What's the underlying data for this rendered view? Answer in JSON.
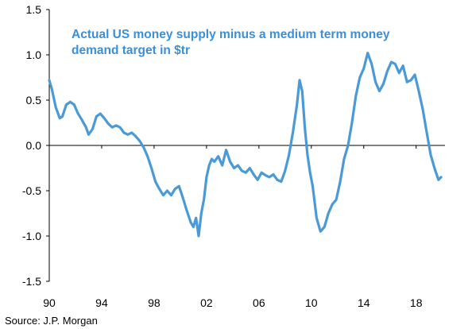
{
  "chart_data": {
    "type": "line",
    "title_lines": [
      "Actual US money supply minus a medium term money",
      "demand target in $tr"
    ],
    "source": "Source: J.P. Morgan",
    "xlabel": "",
    "ylabel": "",
    "xlim": [
      1990,
      2020.2
    ],
    "ylim": [
      -1.5,
      1.5
    ],
    "x_tick_labels": [
      {
        "value": 1990,
        "label": "90"
      },
      {
        "value": 1994,
        "label": "94"
      },
      {
        "value": 1998,
        "label": "98"
      },
      {
        "value": 2002,
        "label": "02"
      },
      {
        "value": 2006,
        "label": "06"
      },
      {
        "value": 2010,
        "label": "10"
      },
      {
        "value": 2014,
        "label": "14"
      },
      {
        "value": 2018,
        "label": "18"
      }
    ],
    "y_tick_labels": [
      {
        "value": 1.5,
        "label": "1.5"
      },
      {
        "value": 1.0,
        "label": "1.0"
      },
      {
        "value": 0.5,
        "label": "0.5"
      },
      {
        "value": 0.0,
        "label": "0.0"
      },
      {
        "value": -0.5,
        "label": "-0.5"
      },
      {
        "value": -1.0,
        "label": "-1.0"
      },
      {
        "value": -1.5,
        "label": "-1.5"
      }
    ],
    "grid": false,
    "legend": "none",
    "colors": {
      "line": "#4a9ad8",
      "title": "#3b8fd6",
      "axis": "#000000"
    },
    "series": [
      {
        "x": [
          1990.0,
          1990.2,
          1990.5,
          1990.8,
          1991.0,
          1991.3,
          1991.6,
          1991.9,
          1992.2,
          1992.5,
          1992.8,
          1993.0,
          1993.3,
          1993.6,
          1993.9,
          1994.2,
          1994.5,
          1994.8,
          1995.1,
          1995.4,
          1995.7,
          1996.0,
          1996.3,
          1996.6,
          1996.9,
          1997.2,
          1997.5,
          1997.8,
          1998.1,
          1998.4,
          1998.7,
          1999.0,
          1999.3,
          1999.6,
          1999.9,
          2000.2,
          2000.5,
          2000.8,
          2001.0,
          2001.2,
          2001.4,
          2001.6,
          2001.8,
          2002.0,
          2002.2,
          2002.4,
          2002.6,
          2002.9,
          2003.2,
          2003.5,
          2003.8,
          2004.1,
          2004.4,
          2004.7,
          2005.0,
          2005.3,
          2005.6,
          2005.9,
          2006.2,
          2006.5,
          2006.8,
          2007.1,
          2007.4,
          2007.7,
          2008.0,
          2008.3,
          2008.6,
          2008.9,
          2009.1,
          2009.3,
          2009.5,
          2009.7,
          2009.9,
          2010.1,
          2010.4,
          2010.7,
          2011.0,
          2011.3,
          2011.6,
          2011.9,
          2012.2,
          2012.5,
          2012.8,
          2013.1,
          2013.4,
          2013.7,
          2014.0,
          2014.3,
          2014.6,
          2014.9,
          2015.2,
          2015.5,
          2015.8,
          2016.1,
          2016.4,
          2016.7,
          2017.0,
          2017.3,
          2017.6,
          2017.9,
          2018.2,
          2018.5,
          2018.8,
          2019.1,
          2019.4,
          2019.7,
          2019.9
        ],
        "y": [
          0.72,
          0.62,
          0.42,
          0.3,
          0.32,
          0.45,
          0.48,
          0.45,
          0.35,
          0.28,
          0.2,
          0.12,
          0.18,
          0.32,
          0.35,
          0.3,
          0.24,
          0.2,
          0.22,
          0.2,
          0.14,
          0.12,
          0.14,
          0.1,
          0.05,
          -0.02,
          -0.12,
          -0.25,
          -0.4,
          -0.48,
          -0.55,
          -0.5,
          -0.55,
          -0.48,
          -0.45,
          -0.58,
          -0.72,
          -0.85,
          -0.9,
          -0.8,
          -1.0,
          -0.75,
          -0.6,
          -0.35,
          -0.22,
          -0.15,
          -0.18,
          -0.12,
          -0.22,
          -0.05,
          -0.18,
          -0.25,
          -0.22,
          -0.28,
          -0.3,
          -0.25,
          -0.32,
          -0.38,
          -0.3,
          -0.33,
          -0.35,
          -0.32,
          -0.38,
          -0.4,
          -0.28,
          -0.1,
          0.15,
          0.45,
          0.72,
          0.6,
          0.2,
          -0.1,
          -0.3,
          -0.45,
          -0.8,
          -0.95,
          -0.9,
          -0.75,
          -0.65,
          -0.6,
          -0.4,
          -0.15,
          0.0,
          0.25,
          0.55,
          0.75,
          0.85,
          1.02,
          0.9,
          0.7,
          0.6,
          0.68,
          0.82,
          0.92,
          0.9,
          0.8,
          0.88,
          0.7,
          0.72,
          0.78,
          0.6,
          0.4,
          0.15,
          -0.1,
          -0.25,
          -0.38,
          -0.35
        ]
      }
    ]
  }
}
